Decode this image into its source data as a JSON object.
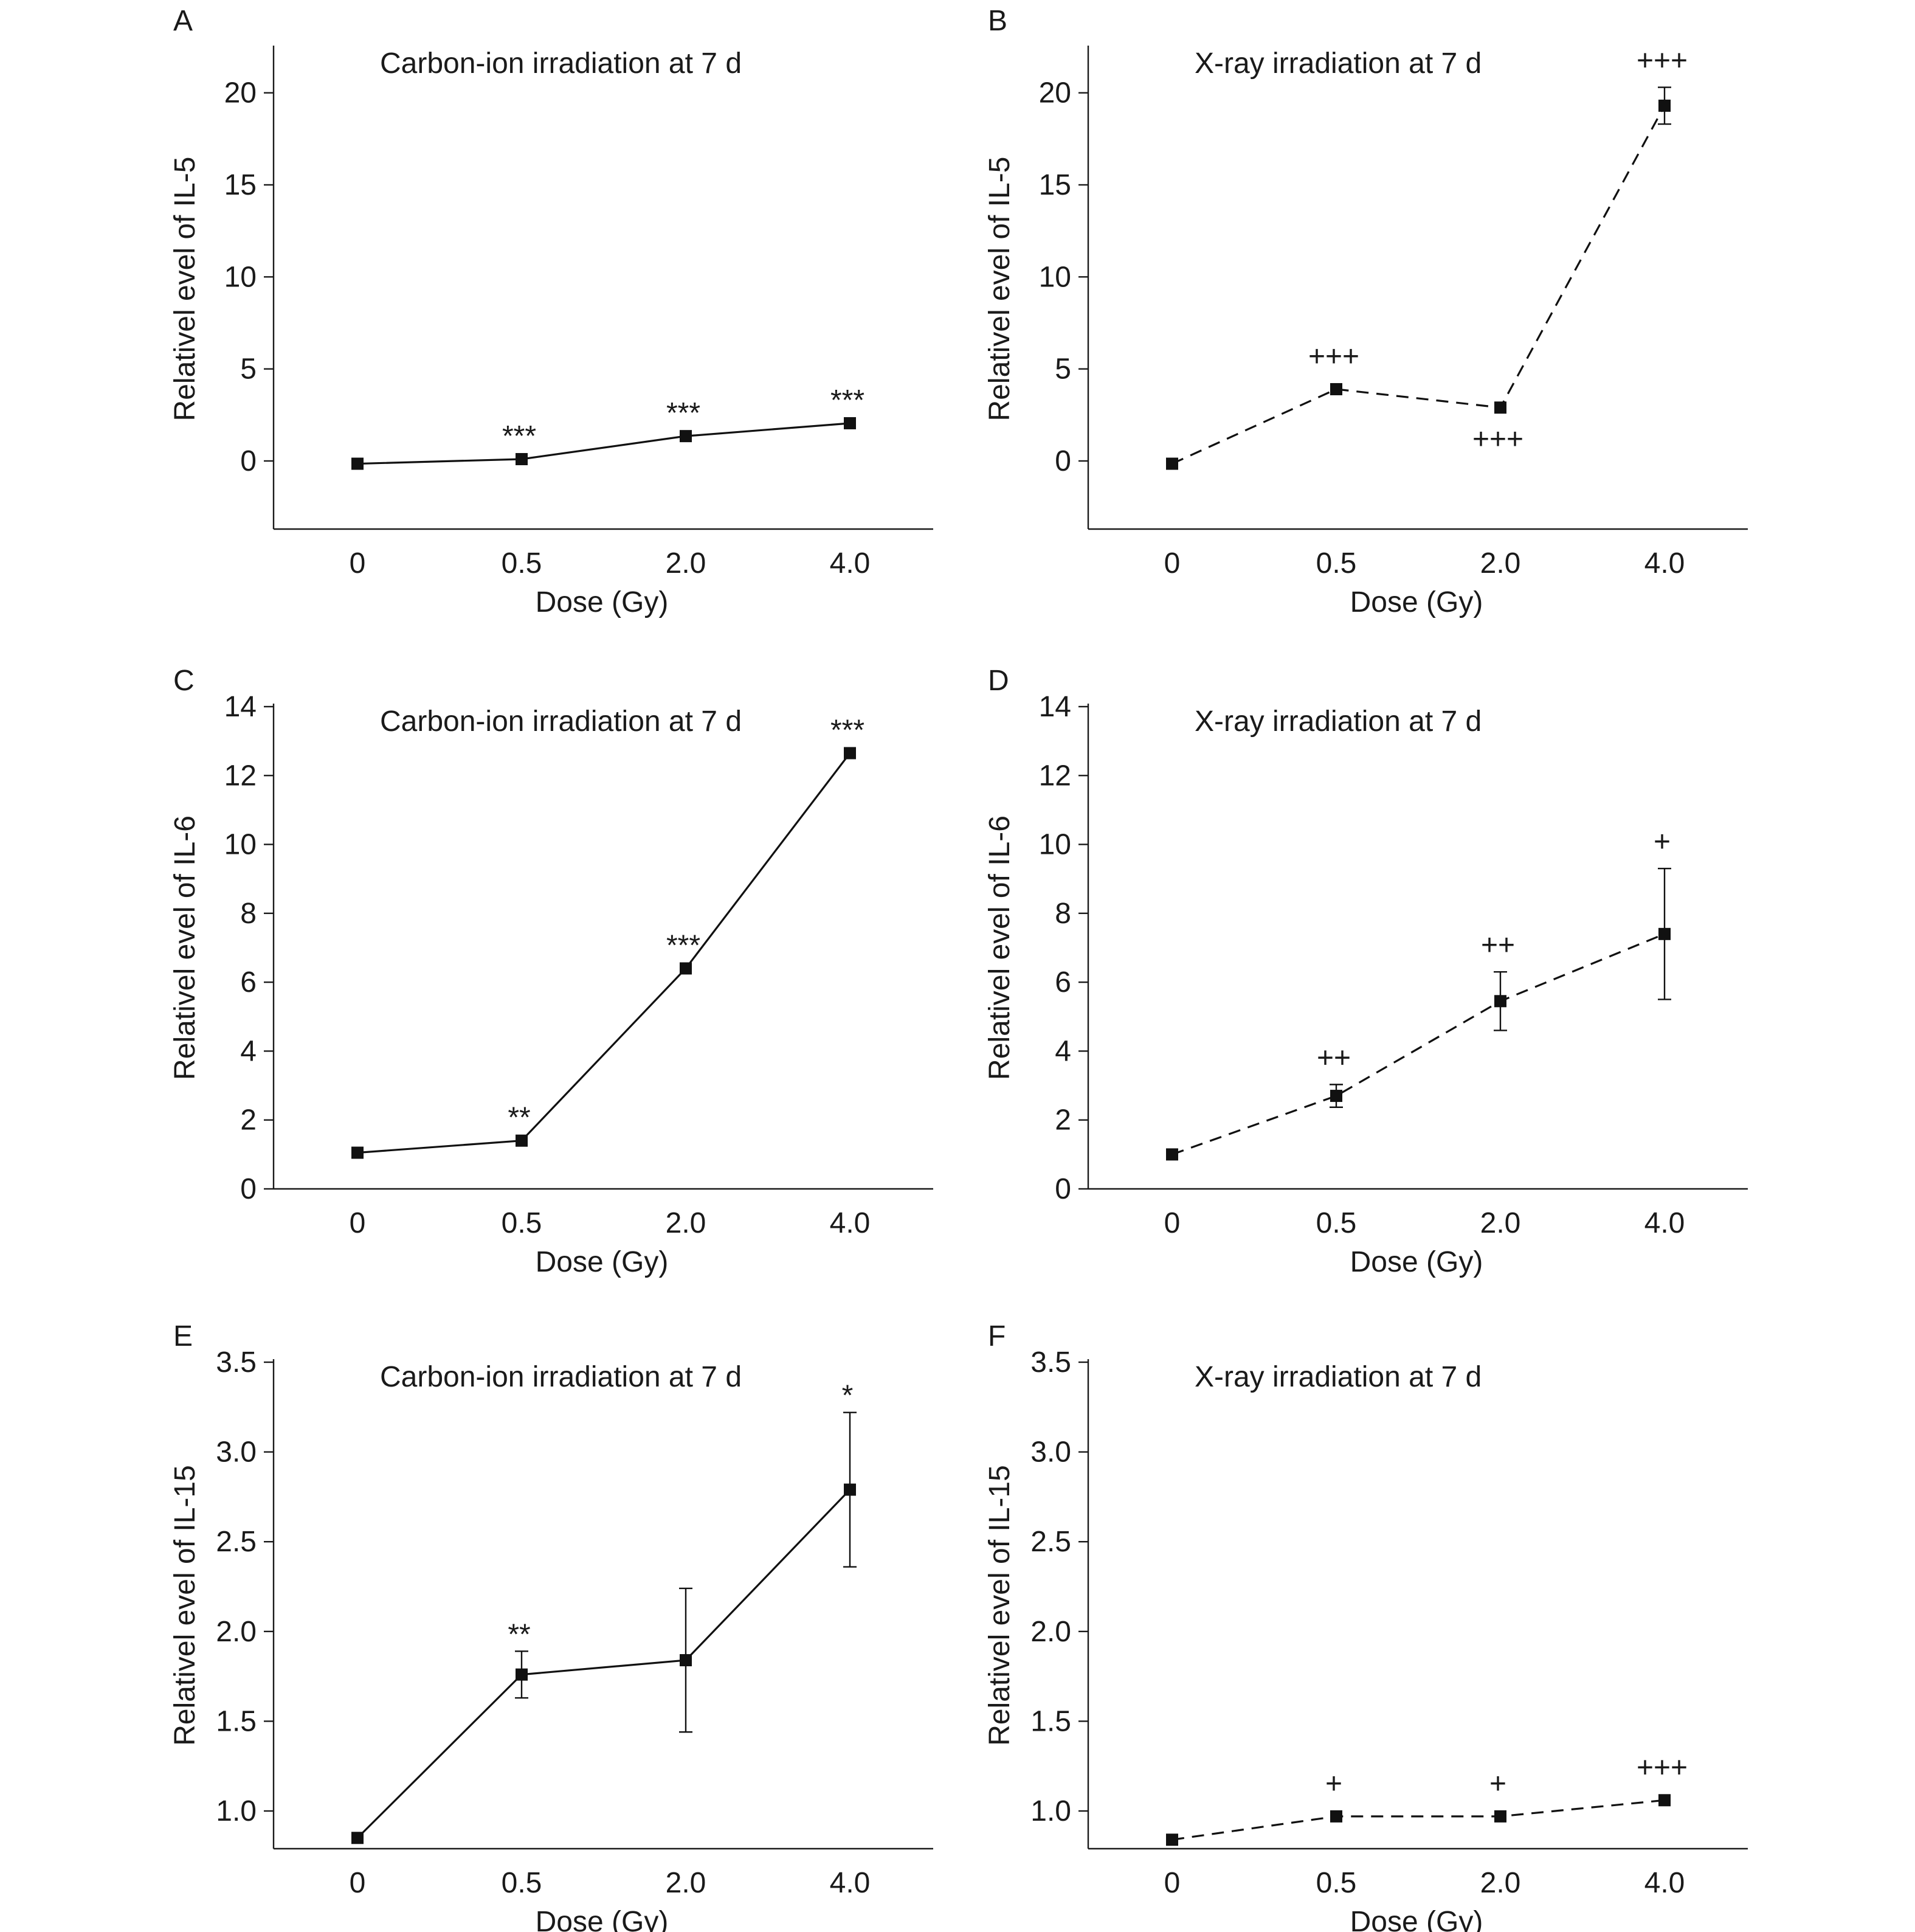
{
  "chart_data": [
    {
      "panel": "A",
      "type": "line",
      "title": "Carbon-ion irradiation at 7 d",
      "xlabel": "Dose (Gy)",
      "ylabel": "Relativel evel of IL-5",
      "categories": [
        "0",
        "0.5",
        "2.0",
        "4.0"
      ],
      "ylim": [
        -3.7,
        22.4
      ],
      "yticks": [
        0,
        5,
        10,
        15,
        20
      ],
      "ytick_labels": [
        "0",
        "5",
        "10",
        "15",
        "20"
      ],
      "line_style": "solid",
      "series": [
        {
          "values": [
            -0.15,
            0.1,
            1.35,
            2.05
          ],
          "errors": [
            0,
            0,
            0,
            0
          ]
        }
      ],
      "annotations": [
        "",
        "***",
        "***",
        "***"
      ]
    },
    {
      "panel": "B",
      "type": "line",
      "title": "X-ray irradiation at 7 d",
      "xlabel": "Dose (Gy)",
      "ylabel": "Relativel evel of IL-5",
      "categories": [
        "0",
        "0.5",
        "2.0",
        "4.0"
      ],
      "ylim": [
        -3.7,
        22.4
      ],
      "yticks": [
        0,
        5,
        10,
        15,
        20
      ],
      "ytick_labels": [
        "0",
        "5",
        "10",
        "15",
        "20"
      ],
      "line_style": "dashed",
      "series": [
        {
          "values": [
            -0.15,
            3.9,
            2.9,
            19.3
          ],
          "errors": [
            0,
            0,
            0,
            1.0
          ]
        }
      ],
      "annotations": [
        "",
        "+++",
        "+++",
        "+++"
      ],
      "annotation_positions": [
        "",
        "above",
        "below",
        "above"
      ]
    },
    {
      "panel": "C",
      "type": "line",
      "title": "Carbon-ion irradiation at 7 d",
      "xlabel": "Dose (Gy)",
      "ylabel": "Relativel evel of IL-6",
      "categories": [
        "0",
        "0.5",
        "2.0",
        "4.0"
      ],
      "ylim": [
        0,
        14
      ],
      "yticks": [
        0,
        2,
        4,
        6,
        8,
        10,
        12,
        14
      ],
      "ytick_labels": [
        "0",
        "2",
        "4",
        "6",
        "8",
        "10",
        "12",
        "14"
      ],
      "line_style": "solid",
      "series": [
        {
          "values": [
            1.05,
            1.4,
            6.4,
            12.65
          ],
          "errors": [
            0,
            0,
            0,
            0
          ]
        }
      ],
      "annotations": [
        "",
        "**",
        "***",
        "***"
      ]
    },
    {
      "panel": "D",
      "type": "line",
      "title": "X-ray irradiation at 7 d",
      "xlabel": "Dose (Gy)",
      "ylabel": "Relativel evel of IL-6",
      "categories": [
        "0",
        "0.5",
        "2.0",
        "4.0"
      ],
      "ylim": [
        0,
        14
      ],
      "yticks": [
        0,
        2,
        4,
        6,
        8,
        10,
        12,
        14
      ],
      "ytick_labels": [
        "0",
        "2",
        "4",
        "6",
        "8",
        "10",
        "12",
        "14"
      ],
      "line_style": "dashed",
      "series": [
        {
          "values": [
            1.0,
            2.7,
            5.45,
            7.4
          ],
          "errors": [
            0,
            0.33,
            0.85,
            1.9
          ]
        }
      ],
      "annotations": [
        "",
        "++",
        "++",
        "+"
      ]
    },
    {
      "panel": "E",
      "type": "line",
      "title": "Carbon-ion irradiation at 7 d",
      "xlabel": "Dose (Gy)",
      "ylabel": "Relativel evel of IL-15",
      "categories": [
        "0",
        "0.5",
        "2.0",
        "4.0"
      ],
      "ylim": [
        0.79,
        3.5
      ],
      "yticks": [
        1.0,
        1.5,
        2.0,
        2.5,
        3.0,
        3.5
      ],
      "ytick_labels": [
        "1.0",
        "1.5",
        "2.0",
        "2.5",
        "3.0",
        "3.5"
      ],
      "line_style": "solid",
      "series": [
        {
          "values": [
            0.85,
            1.76,
            1.84,
            2.79
          ],
          "errors": [
            0,
            0.13,
            0.4,
            0.43
          ]
        }
      ],
      "annotations": [
        "",
        "**",
        "",
        "*"
      ]
    },
    {
      "panel": "F",
      "type": "line",
      "title": "X-ray irradiation at 7 d",
      "xlabel": "Dose (Gy)",
      "ylabel": "Relativel evel of IL-15",
      "categories": [
        "0",
        "0.5",
        "2.0",
        "4.0"
      ],
      "ylim": [
        0.79,
        3.5
      ],
      "yticks": [
        1.0,
        1.5,
        2.0,
        2.5,
        3.0,
        3.5
      ],
      "ytick_labels": [
        "1.0",
        "1.5",
        "2.0",
        "2.5",
        "3.0",
        "3.5"
      ],
      "line_style": "dashed",
      "series": [
        {
          "values": [
            0.84,
            0.97,
            0.97,
            1.06
          ],
          "errors": [
            0,
            0,
            0,
            0
          ]
        }
      ],
      "annotations": [
        "",
        "+",
        "+",
        "+++"
      ]
    }
  ]
}
